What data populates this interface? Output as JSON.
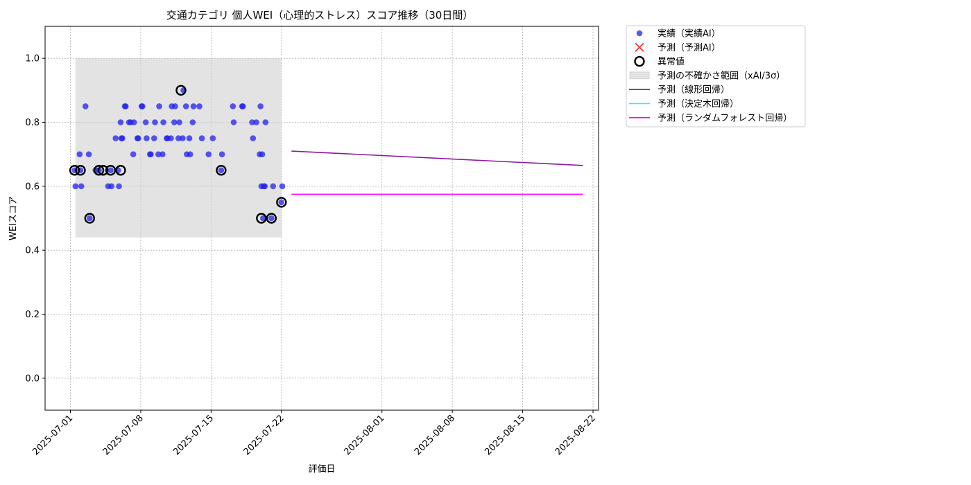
{
  "chart_data": {
    "type": "scatter",
    "title": "交通カテゴリ 個人WEI（心理的ストレス）スコア推移（30日間）",
    "xlabel": "評価日",
    "ylabel": "WEIスコア",
    "ylim": [
      -0.1,
      1.1
    ],
    "xlim": [
      "2025-06-28",
      "2025-08-22"
    ],
    "yticks": [
      "0.0",
      "0.2",
      "0.4",
      "0.6",
      "0.8",
      "1.0"
    ],
    "xticks": [
      "2025-07-01",
      "2025-07-08",
      "2025-07-15",
      "2025-07-22",
      "2025-08-01",
      "2025-08-08",
      "2025-08-15",
      "2025-08-22"
    ],
    "grid": true,
    "legend_position": "outside-top-right",
    "colors": {
      "actual": "#2222ee",
      "predicted": "#ff3333",
      "outlier": "#000000",
      "uncertainty": "#cccccc",
      "linear": "#8b1a9e",
      "tree": "#00ffff",
      "forest": "#ff00ff"
    },
    "legend": [
      {
        "key": "actual",
        "label": "実績（実績AI）"
      },
      {
        "key": "predicted",
        "label": "予測（予測AI）"
      },
      {
        "key": "outlier",
        "label": "異常値"
      },
      {
        "key": "uncertainty",
        "label": "予測の不確かさ範囲（xAI/3σ）"
      },
      {
        "key": "linear",
        "label": "予測（線形回帰）"
      },
      {
        "key": "tree",
        "label": "予測（決定木回帰）"
      },
      {
        "key": "forest",
        "label": "予測（ランダムフォレスト回帰）"
      }
    ],
    "series": [
      {
        "name": "実績（実績AI）",
        "points": [
          [
            "2025-07-01 10:00",
            0.65
          ],
          [
            "2025-07-01 12:00",
            0.6
          ],
          [
            "2025-07-01 22:00",
            0.7
          ],
          [
            "2025-07-02 00:00",
            0.65
          ],
          [
            "2025-07-02 02:00",
            0.6
          ],
          [
            "2025-07-02 12:00",
            0.85
          ],
          [
            "2025-07-02 20:00",
            0.7
          ],
          [
            "2025-07-02 22:00",
            0.5
          ],
          [
            "2025-07-03 12:00",
            0.65
          ],
          [
            "2025-07-03 20:00",
            0.65
          ],
          [
            "2025-07-04 18:00",
            0.6
          ],
          [
            "2025-07-05 00:00",
            0.65
          ],
          [
            "2025-07-05 02:00",
            0.6
          ],
          [
            "2025-07-05 12:00",
            0.75
          ],
          [
            "2025-07-05 18:00",
            0.65
          ],
          [
            "2025-07-05 20:00",
            0.6
          ],
          [
            "2025-07-06 00:00",
            0.8
          ],
          [
            "2025-07-06 02:00",
            0.75
          ],
          [
            "2025-07-06 04:00",
            0.75
          ],
          [
            "2025-07-06 10:00",
            0.85
          ],
          [
            "2025-07-06 12:00",
            0.85
          ],
          [
            "2025-07-06 20:00",
            0.8
          ],
          [
            "2025-07-07 00:00",
            0.8
          ],
          [
            "2025-07-07 06:00",
            0.7
          ],
          [
            "2025-07-07 08:00",
            0.8
          ],
          [
            "2025-07-07 16:00",
            0.75
          ],
          [
            "2025-07-07 18:00",
            0.75
          ],
          [
            "2025-07-08 02:00",
            0.85
          ],
          [
            "2025-07-08 04:00",
            0.85
          ],
          [
            "2025-07-08 12:00",
            0.8
          ],
          [
            "2025-07-08 14:00",
            0.75
          ],
          [
            "2025-07-08 22:00",
            0.7
          ],
          [
            "2025-07-09 00:00",
            0.7
          ],
          [
            "2025-07-09 08:00",
            0.75
          ],
          [
            "2025-07-09 10:00",
            0.8
          ],
          [
            "2025-07-09 18:00",
            0.7
          ],
          [
            "2025-07-09 20:00",
            0.85
          ],
          [
            "2025-07-10 04:00",
            0.7
          ],
          [
            "2025-07-10 06:00",
            0.8
          ],
          [
            "2025-07-10 14:00",
            0.75
          ],
          [
            "2025-07-10 16:00",
            0.75
          ],
          [
            "2025-07-11 00:00",
            0.75
          ],
          [
            "2025-07-11 02:00",
            0.85
          ],
          [
            "2025-07-11 08:00",
            0.8
          ],
          [
            "2025-07-11 10:00",
            0.85
          ],
          [
            "2025-07-11 18:00",
            0.75
          ],
          [
            "2025-07-11 20:00",
            0.8
          ],
          [
            "2025-07-12 04:00",
            0.75
          ],
          [
            "2025-07-12 06:00",
            0.9
          ],
          [
            "2025-07-12 12:00",
            0.85
          ],
          [
            "2025-07-12 14:00",
            0.7
          ],
          [
            "2025-07-12 20:00",
            0.75
          ],
          [
            "2025-07-12 22:00",
            0.7
          ],
          [
            "2025-07-13 04:00",
            0.8
          ],
          [
            "2025-07-13 06:00",
            0.85
          ],
          [
            "2025-07-13 20:00",
            0.85
          ],
          [
            "2025-07-14 02:00",
            0.75
          ],
          [
            "2025-07-14 18:00",
            0.7
          ],
          [
            "2025-07-15 04:00",
            0.75
          ],
          [
            "2025-07-16 00:00",
            0.65
          ],
          [
            "2025-07-16 02:00",
            0.7
          ],
          [
            "2025-07-17 04:00",
            0.85
          ],
          [
            "2025-07-17 06:00",
            0.8
          ],
          [
            "2025-07-18 02:00",
            0.85
          ],
          [
            "2025-07-18 04:00",
            0.85
          ],
          [
            "2025-07-19 02:00",
            0.8
          ],
          [
            "2025-07-19 04:00",
            0.75
          ],
          [
            "2025-07-19 12:00",
            0.8
          ],
          [
            "2025-07-19 20:00",
            0.7
          ],
          [
            "2025-07-19 22:00",
            0.85
          ],
          [
            "2025-07-20 00:00",
            0.6
          ],
          [
            "2025-07-20 02:00",
            0.7
          ],
          [
            "2025-07-20 04:00",
            0.5
          ],
          [
            "2025-07-20 06:00",
            0.6
          ],
          [
            "2025-07-20 08:00",
            0.6
          ],
          [
            "2025-07-20 10:00",
            0.8
          ],
          [
            "2025-07-21 00:00",
            0.5
          ],
          [
            "2025-07-21 04:00",
            0.6
          ],
          [
            "2025-07-22 00:00",
            0.55
          ],
          [
            "2025-07-22 02:00",
            0.6
          ]
        ]
      },
      {
        "name": "異常値",
        "points": [
          [
            "2025-07-01 10:00",
            0.65
          ],
          [
            "2025-07-02 00:00",
            0.65
          ],
          [
            "2025-07-02 22:00",
            0.5
          ],
          [
            "2025-07-03 20:00",
            0.65
          ],
          [
            "2025-07-04 06:00",
            0.65
          ],
          [
            "2025-07-05 00:00",
            0.65
          ],
          [
            "2025-07-06 00:00",
            0.65
          ],
          [
            "2025-07-12 00:00",
            0.9
          ],
          [
            "2025-07-16 00:00",
            0.65
          ],
          [
            "2025-07-20 00:00",
            0.5
          ],
          [
            "2025-07-21 00:00",
            0.5
          ],
          [
            "2025-07-22 00:00",
            0.55
          ]
        ]
      },
      {
        "name": "予測の不確かさ範囲（xAI/3σ）",
        "x_range": [
          "2025-07-01 12:00",
          "2025-07-22 00:00"
        ],
        "y_range": [
          0.44,
          1.0
        ]
      },
      {
        "name": "予測（線形回帰）",
        "points": [
          [
            "2025-07-23 00:00",
            0.71
          ],
          [
            "2025-08-21 00:00",
            0.665
          ]
        ]
      },
      {
        "name": "予測（決定木回帰）",
        "points": [
          [
            "2025-07-23 00:00",
            0.575
          ],
          [
            "2025-08-21 00:00",
            0.575
          ]
        ]
      },
      {
        "name": "予測（ランダムフォレスト回帰）",
        "points": [
          [
            "2025-07-23 00:00",
            0.575
          ],
          [
            "2025-08-21 00:00",
            0.575
          ]
        ]
      }
    ]
  }
}
